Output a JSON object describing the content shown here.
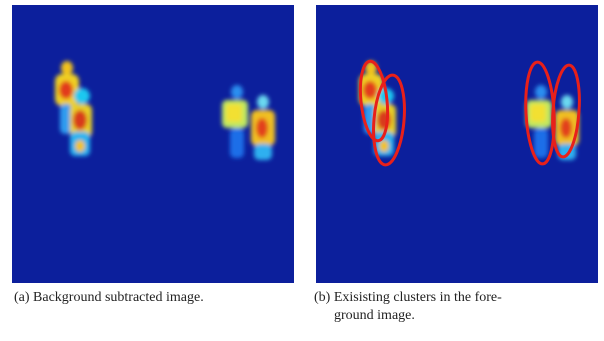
{
  "figures": [
    {
      "caption_lines": [
        "(a) Background subtracted image."
      ]
    },
    {
      "caption_lines": [
        "(b) Exisisting clusters in the fore-",
        "ground image."
      ]
    }
  ]
}
